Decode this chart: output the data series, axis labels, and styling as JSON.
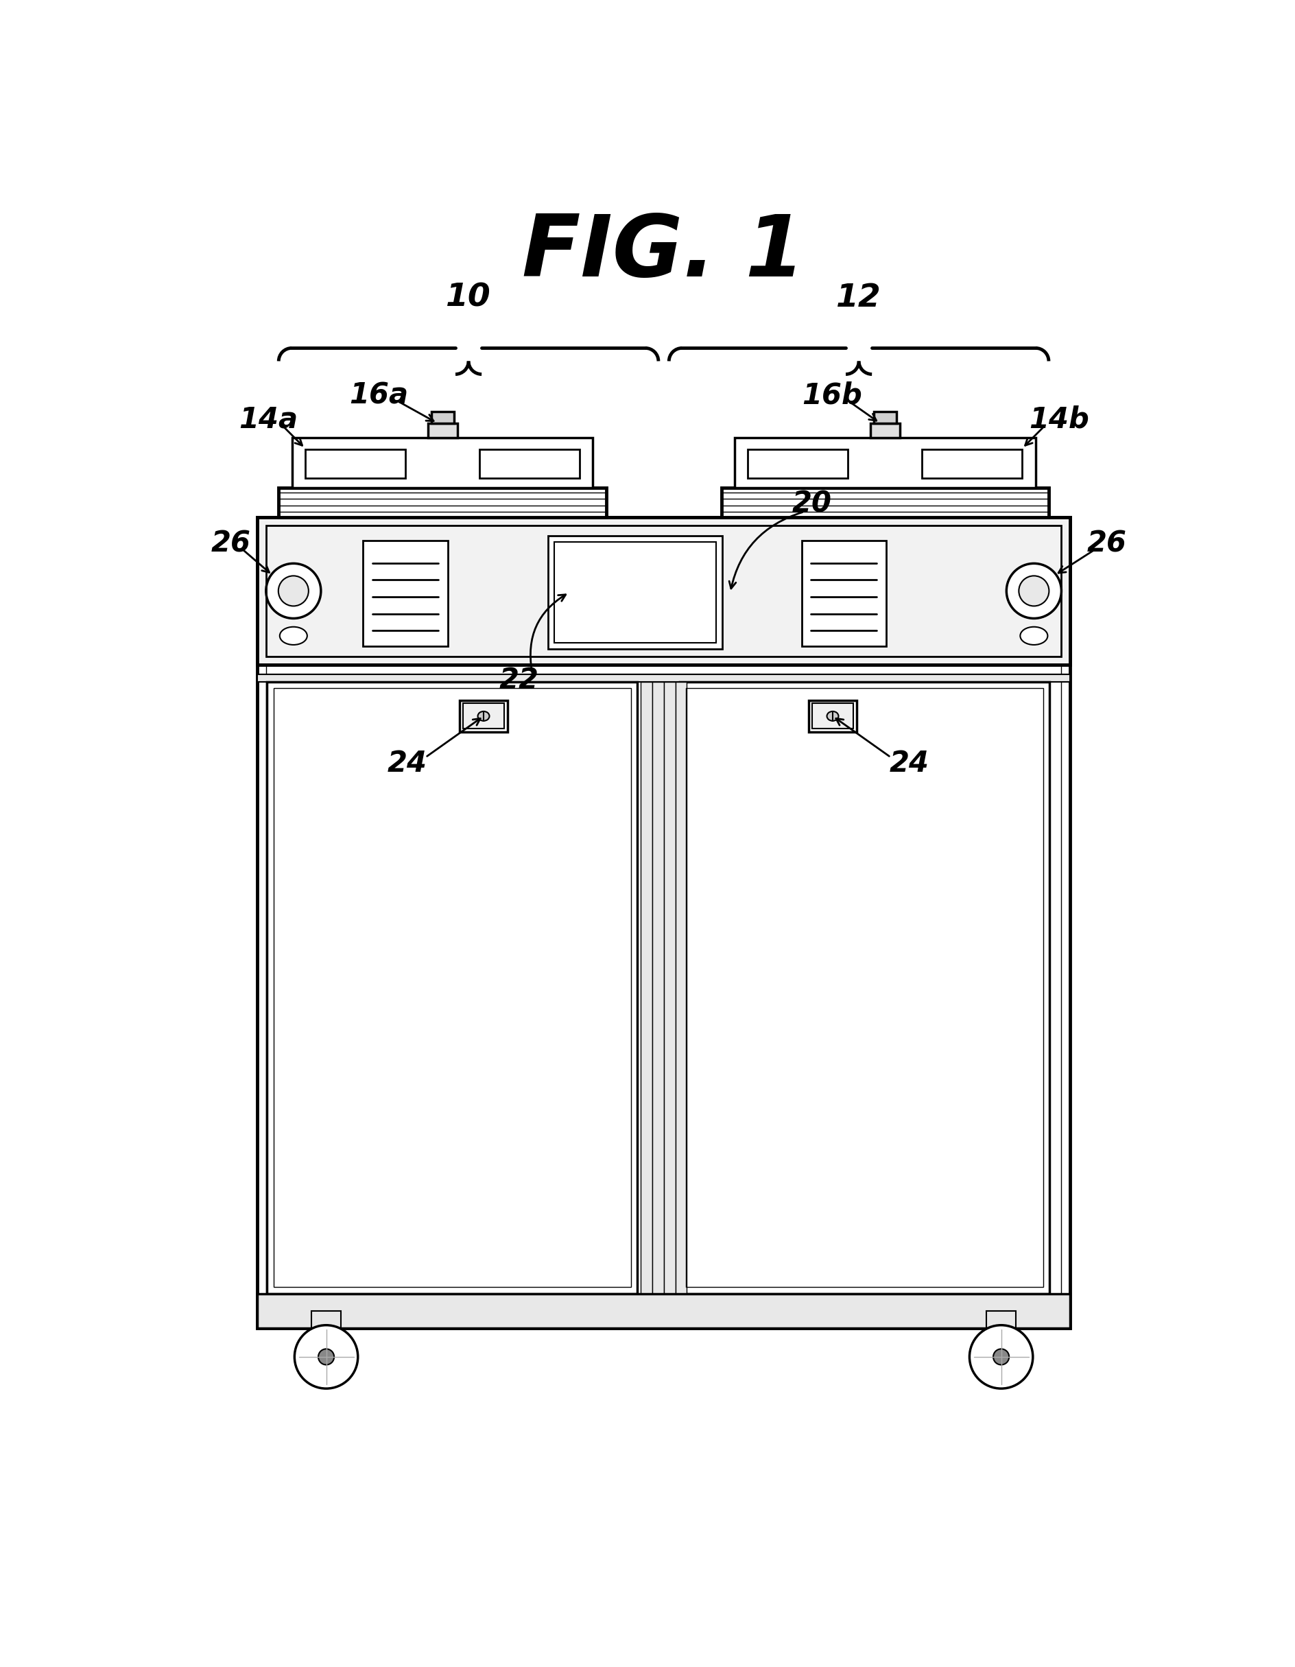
{
  "title": "FIG. 1",
  "bg_color": "#ffffff",
  "lc": "#000000",
  "fig_width": 18.88,
  "fig_height": 24.3,
  "labels": {
    "title": "FIG. 1",
    "n10": "10",
    "n12": "12",
    "n14a": "14a",
    "n14b": "14b",
    "n16a": "16a",
    "n16b": "16b",
    "n20": "20",
    "n22": "22",
    "n24": "24",
    "n26": "26"
  }
}
